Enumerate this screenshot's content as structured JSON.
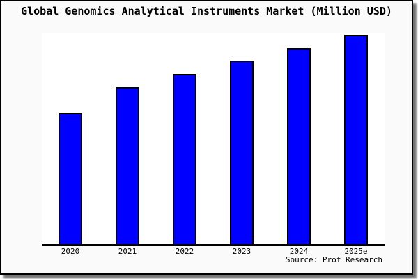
{
  "window": {
    "background_color": "#fafafa",
    "border_color": "#000000",
    "plot_background_color": "#ffffff"
  },
  "chart_data": {
    "type": "bar",
    "title": "Global Genomics Analytical Instruments Market (Million USD)",
    "categories": [
      "2020",
      "2021",
      "2022",
      "2023",
      "2024",
      "2025e"
    ],
    "values": [
      188,
      225,
      244,
      263,
      281,
      300
    ],
    "values_note": "no y-axis ticks or gridlines shown; values are relative bar heights read from pixels",
    "xlabel": "",
    "ylabel": "",
    "ylim": [
      0,
      302
    ],
    "grid": false,
    "legend": false,
    "bar_color": "#0000ff",
    "bar_border_color": "#000000",
    "source_note": "Source: Prof Research"
  }
}
